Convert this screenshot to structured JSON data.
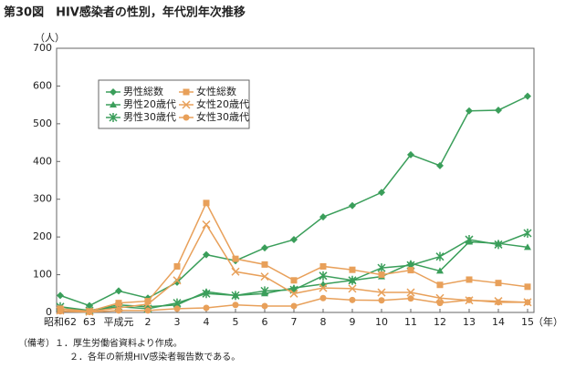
{
  "chart_data": {
    "type": "line",
    "title": "第30図　HIV感染者の性別，年代別年次推移",
    "y_label": "（人）",
    "x_label": "（年）",
    "notes": [
      "（備考）１．厚生労働省資料より作成。",
      "２．各年の新規HIV感染者報告数である。"
    ],
    "categories": [
      "昭和62",
      "63",
      "平成元",
      "2",
      "3",
      "4",
      "5",
      "6",
      "7",
      "8",
      "9",
      "10",
      "11",
      "12",
      "13",
      "14",
      "15"
    ],
    "ylim": [
      0,
      700
    ],
    "yticks": [
      0,
      100,
      200,
      300,
      400,
      500,
      600,
      700
    ],
    "legend_position": "upper left",
    "series": [
      {
        "name": "男性総数",
        "color": "#3a9e5a",
        "marker": "diamond",
        "values": [
          45,
          18,
          57,
          38,
          80,
          153,
          137,
          171,
          193,
          253,
          283,
          318,
          418,
          389,
          534,
          536,
          573
        ]
      },
      {
        "name": "男性20歳代",
        "color": "#3a9e5a",
        "marker": "triangle",
        "values": [
          10,
          5,
          20,
          15,
          20,
          55,
          45,
          50,
          65,
          75,
          85,
          95,
          130,
          110,
          187,
          183,
          173
        ]
      },
      {
        "name": "男性30歳代",
        "color": "#3a9e5a",
        "marker": "asterisk",
        "values": [
          15,
          5,
          15,
          10,
          25,
          50,
          45,
          57,
          60,
          97,
          85,
          118,
          125,
          148,
          193,
          180,
          210
        ]
      },
      {
        "name": "女性総数",
        "color": "#e8a05a",
        "marker": "square",
        "values": [
          10,
          3,
          25,
          30,
          122,
          290,
          142,
          127,
          85,
          122,
          113,
          100,
          112,
          73,
          87,
          78,
          68
        ]
      },
      {
        "name": "女性20歳代",
        "color": "#e8a05a",
        "marker": "x",
        "values": [
          5,
          2,
          12,
          22,
          85,
          233,
          108,
          95,
          50,
          65,
          63,
          53,
          53,
          38,
          32,
          30,
          27
        ]
      },
      {
        "name": "女性30歳代",
        "color": "#e8a05a",
        "marker": "circle",
        "values": [
          3,
          1,
          5,
          5,
          10,
          12,
          20,
          17,
          17,
          38,
          33,
          32,
          37,
          25,
          33,
          27,
          27
        ]
      }
    ]
  }
}
